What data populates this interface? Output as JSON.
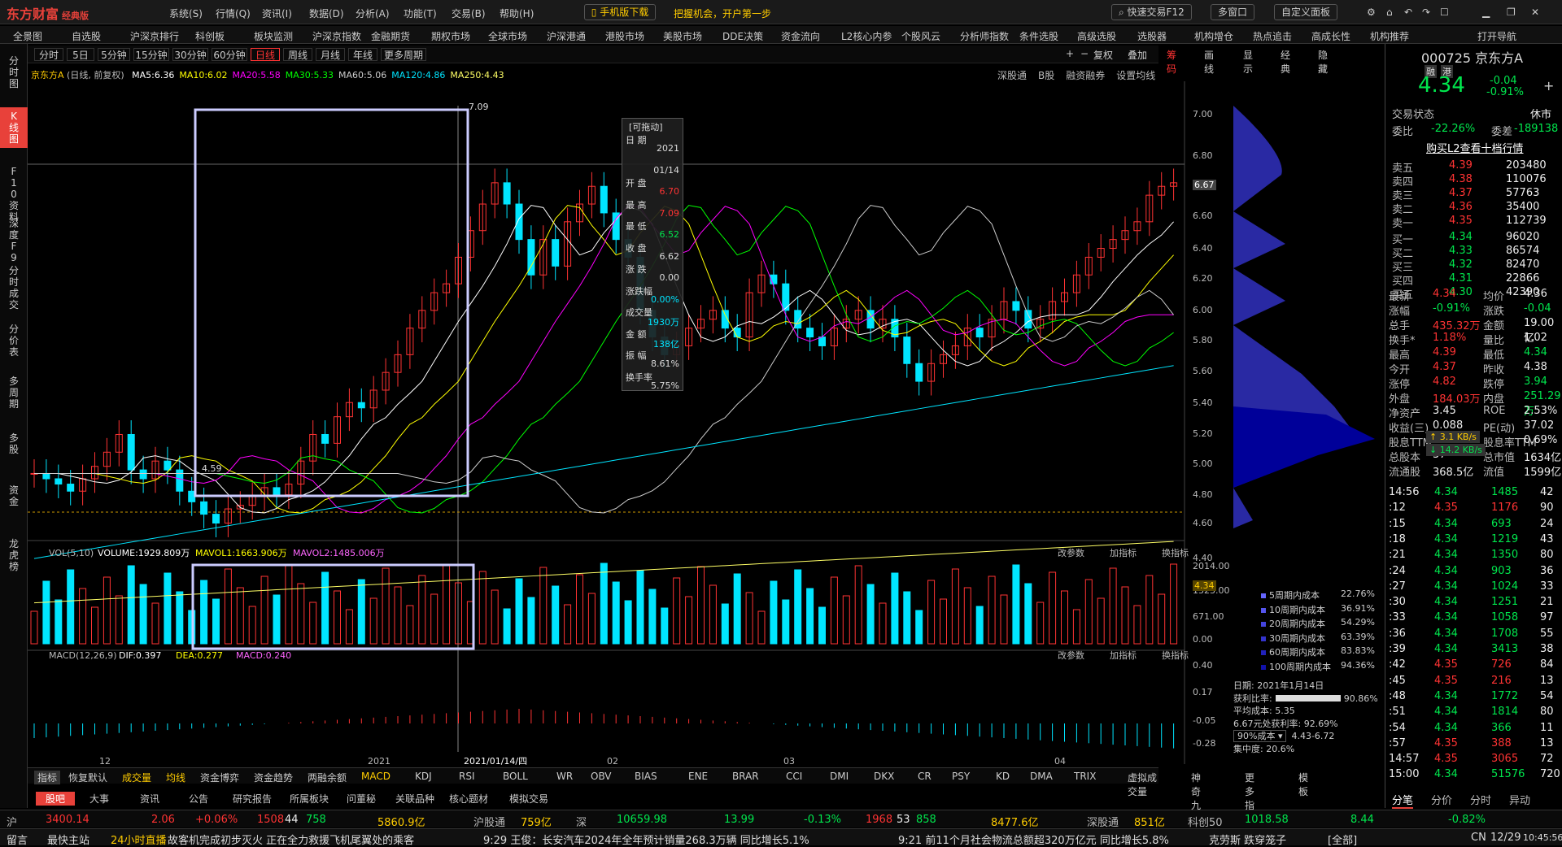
{
  "app": {
    "name": "东方财富",
    "edition": "经典版",
    "mobile_download": "手机版下载",
    "promo": "把握机会，开户第一步",
    "quick_trade": "快速交易F12",
    "multi_window": "多窗口",
    "custom_panel": "自定义面板"
  },
  "menus": [
    "系统(S)",
    "行情(Q)",
    "资讯(I)",
    "数据(D)",
    "分析(A)",
    "功能(T)",
    "交易(B)",
    "帮助(H)"
  ],
  "nav": [
    "全景图",
    "自选股",
    "沪深京排行",
    "科创板",
    "板块监测",
    "沪深京指数",
    "金融期货",
    "期权市场",
    "全球市场",
    "沪深港通",
    "港股市场",
    "美股市场",
    "DDE决策",
    "资金流向",
    "L2核心内参",
    "个股风云",
    "分析师指数",
    "条件选股",
    "高级选股",
    "选股器",
    "机构增仓",
    "热点追击",
    "高成长性",
    "机构推荐",
    "打开导航"
  ],
  "left_tabs": [
    "分时图",
    "K线图",
    "F10资料",
    "深度F9",
    "分时成交",
    "分价表",
    "多周期",
    "多股",
    "资金",
    "龙虎榜"
  ],
  "periods": [
    "分时",
    "5日",
    "5分钟",
    "15分钟",
    "30分钟",
    "60分钟",
    "日线",
    "周线",
    "月线",
    "年线",
    "更多周期"
  ],
  "period_selected": "日线",
  "toolbar_right": [
    "复权",
    "叠加",
    "筹码",
    "画线",
    "显示",
    "经典",
    "隐藏"
  ],
  "chart": {
    "stock_name": "京东方A",
    "mode": "(日线, 前复权)",
    "ma": [
      {
        "label": "MA5:6.36",
        "color": "#ffffff"
      },
      {
        "label": "MA10:6.02",
        "color": "#ffff00"
      },
      {
        "label": "MA20:5.58",
        "color": "#ff00ff"
      },
      {
        "label": "MA30:5.33",
        "color": "#00ff00"
      },
      {
        "label": "MA60:5.06",
        "color": "#cccccc"
      },
      {
        "label": "MA120:4.86",
        "color": "#00e5ff"
      },
      {
        "label": "MA250:4.43",
        "color": "#ffff66"
      }
    ],
    "links": [
      "深股通",
      "B股",
      "融资融券",
      "设置均线"
    ],
    "price_labels": [
      "7.00",
      "6.80",
      "6.67",
      "6.60",
      "6.40",
      "6.20",
      "6.00",
      "5.80",
      "5.60",
      "5.40",
      "5.20",
      "5.00",
      "4.80",
      "4.60",
      "4.40",
      "4.34"
    ],
    "high_mark": "7.09",
    "low_mark": "4.59",
    "vol_header": "VOL(5,10)",
    "vol_val": "VOLUME:1929.809万",
    "vol_ma1": "MAVOL1:1663.906万",
    "vol_ma2": "MAVOL2:1485.006万",
    "vol_axis": [
      "2014.00",
      "1323.00",
      "671.00",
      "0.00"
    ],
    "macd_header": "MACD(12,26,9)",
    "dif": "DIF:0.397",
    "dea": "DEA:0.277",
    "macd": "MACD:0.240",
    "macd_axis": [
      "0.40",
      "0.17",
      "-0.05",
      "-0.28"
    ],
    "panel_actions": [
      "改参数",
      "加指标",
      "换指标"
    ],
    "x_ticks": [
      "12",
      "2021",
      "2021/01/14/四",
      "02",
      "03",
      "04"
    ]
  },
  "tooltip": {
    "title": "[可拖动]",
    "rows": [
      [
        "日 期",
        "2021"
      ],
      [
        "",
        "01/14"
      ],
      [
        "开 盘",
        "6.70"
      ],
      [
        "最 高",
        "7.09"
      ],
      [
        "最 低",
        "6.52"
      ],
      [
        "收 盘",
        "6.62"
      ],
      [
        "涨 跌",
        "0.00"
      ],
      [
        "涨跌幅",
        "0.00%"
      ],
      [
        "成交量",
        "1930万"
      ],
      [
        "金 额",
        "138亿"
      ],
      [
        "振 幅",
        "8.61%"
      ],
      [
        "换手率",
        "5.75%"
      ]
    ]
  },
  "cost": {
    "legend": [
      "5周期内成本",
      "10周期内成本",
      "20周期内成本",
      "30周期内成本",
      "60周期内成本",
      "100周期内成本"
    ],
    "values": [
      "22.76%",
      "36.91%",
      "54.29%",
      "63.39%",
      "83.83%",
      "94.36%"
    ],
    "date": "日期: 2021年1月14日",
    "profit": "获利比率:",
    "profit_val": "90.86%",
    "avg": "平均成本: 5.35",
    "rate": "6.67元处获利率: 92.69%",
    "range_sel": "90%成本",
    "range": "4.43-6.72",
    "conc": "集中度: 20.6%"
  },
  "indicator_tabs": [
    "指标",
    "恢复默认",
    "成交量",
    "均线",
    "资金博弈",
    "资金趋势",
    "两融余额",
    "MACD",
    "KDJ",
    "RSI",
    "BOLL",
    "WR",
    "OBV",
    "BIAS",
    "ENE",
    "BRAR",
    "CCI",
    "DMI",
    "DKX",
    "CR",
    "PSY",
    "KD",
    "DMA",
    "TRIX",
    "虚拟成交量",
    "神奇九转",
    "更多指标",
    "模板"
  ],
  "bottom_tabs": [
    "股吧",
    "大事",
    "资讯",
    "公告",
    "研究报告",
    "所属板块",
    "问董秘",
    "关联品种",
    "核心题材",
    "模拟交易"
  ],
  "quote": {
    "code": "000725",
    "name": "京东方A",
    "tags": [
      "融",
      "港"
    ],
    "price": "4.34",
    "change": "-0.04",
    "pct": "-0.91%",
    "status_label": "交易状态",
    "status": "休市",
    "wb_label": "委比",
    "wb": "-22.26%",
    "wc_label": "委差",
    "wc": "-189138",
    "l2": "购买L2查看十档行情",
    "asks": [
      [
        "卖五",
        "4.39",
        "203480"
      ],
      [
        "卖四",
        "4.38",
        "110076"
      ],
      [
        "卖三",
        "4.37",
        "57763"
      ],
      [
        "卖二",
        "4.36",
        "35400"
      ],
      [
        "卖一",
        "4.35",
        "112739"
      ]
    ],
    "bids": [
      [
        "买一",
        "4.34",
        "96020"
      ],
      [
        "买二",
        "4.33",
        "86574"
      ],
      [
        "买三",
        "4.32",
        "82470"
      ],
      [
        "买四",
        "4.31",
        "22866"
      ],
      [
        "买五",
        "4.30",
        "42390"
      ]
    ],
    "stats": [
      [
        "最新",
        "4.34",
        "均价",
        "4.36"
      ],
      [
        "涨幅",
        "-0.91%",
        "涨跌",
        "-0.04"
      ],
      [
        "总手",
        "435.32万",
        "金额",
        "19.00亿"
      ],
      [
        "换手*",
        "1.18%",
        "量比",
        "1.02"
      ],
      [
        "最高",
        "4.39",
        "最低",
        "4.34"
      ],
      [
        "今开",
        "4.37",
        "昨收",
        "4.38"
      ],
      [
        "涨停",
        "4.82",
        "跌停",
        "3.94"
      ],
      [
        "外盘",
        "184.03万",
        "内盘",
        "251.29万"
      ],
      [
        "净资产",
        "3.45",
        "ROE",
        "2.53%"
      ],
      [
        "收益(三)",
        "0.088",
        "PE(动)",
        "37.02"
      ],
      [
        "股息TTM",
        "",
        "股息率TTM",
        "0.69%"
      ],
      [
        "总股本",
        "37",
        "总市值",
        "1634亿"
      ],
      [
        "流通股",
        "368.5亿",
        "流值",
        "1599亿"
      ]
    ],
    "net_up": "3.1 KB/s",
    "net_down": "14.2 KB/s",
    "ticks": [
      [
        "14:56",
        "4.34",
        "1485",
        "42"
      ],
      [
        ":12",
        "4.35",
        "1176",
        "90"
      ],
      [
        ":15",
        "4.34",
        "693",
        "24"
      ],
      [
        ":18",
        "4.34",
        "1219",
        "43"
      ],
      [
        ":21",
        "4.34",
        "1350",
        "80"
      ],
      [
        ":24",
        "4.34",
        "903",
        "36"
      ],
      [
        ":27",
        "4.34",
        "1024",
        "33"
      ],
      [
        ":30",
        "4.34",
        "1251",
        "21"
      ],
      [
        ":33",
        "4.34",
        "1058",
        "97"
      ],
      [
        ":36",
        "4.34",
        "1708",
        "55"
      ],
      [
        ":39",
        "4.34",
        "3413",
        "38"
      ],
      [
        ":42",
        "4.35",
        "726",
        "84"
      ],
      [
        ":45",
        "4.35",
        "216",
        "13"
      ],
      [
        ":48",
        "4.34",
        "1772",
        "54"
      ],
      [
        ":51",
        "4.34",
        "1814",
        "80"
      ],
      [
        ":54",
        "4.34",
        "366",
        "11"
      ],
      [
        ":57",
        "4.35",
        "388",
        "13"
      ],
      [
        "14:57",
        "4.35",
        "3065",
        "72"
      ],
      [
        "15:00",
        "4.34",
        "51576",
        "720"
      ]
    ],
    "tabs": [
      "分笔",
      "分价",
      "分时",
      "异动"
    ]
  },
  "status": {
    "sh_label": "沪",
    "sh": "3400.14",
    "sh_chg": "2.06",
    "sh_pct": "+0.06%",
    "sh_a": "1508",
    "sh_b": "44",
    "sh_c": "758",
    "sh_amt": "5860.9亿",
    "hgt": "沪股通",
    "hgt_val": "759亿",
    "sz_label": "深",
    "sz": "10659.98",
    "sz_chg": "13.99",
    "sz_pct": "-0.13%",
    "sz_a": "1968",
    "sz_b": "53",
    "sz_c": "858",
    "sz_amt": "8477.6亿",
    "sgt": "深股通",
    "sgt_val": "851亿",
    "kc_label": "科创50",
    "kc": "1018.58",
    "kc_chg": "8.44",
    "kc_pct": "-0.82%"
  },
  "news": {
    "left": "留言",
    "main": "最快主站",
    "live": "24小时直播",
    "items": [
      "故客机完成初步灭火 正在全力救援飞机尾翼处的乘客",
      "9:29 王俊：长安汽车2024年全年预计销量268.3万辆 同比增长5.1%",
      "9:21 前11个月社会物流总额超320万亿元 同比增长5.8%",
      "克劳斯 跌穿笼子",
      "[全部]"
    ],
    "lang": "CN",
    "date": "12/29",
    "time": "10:45:56"
  }
}
